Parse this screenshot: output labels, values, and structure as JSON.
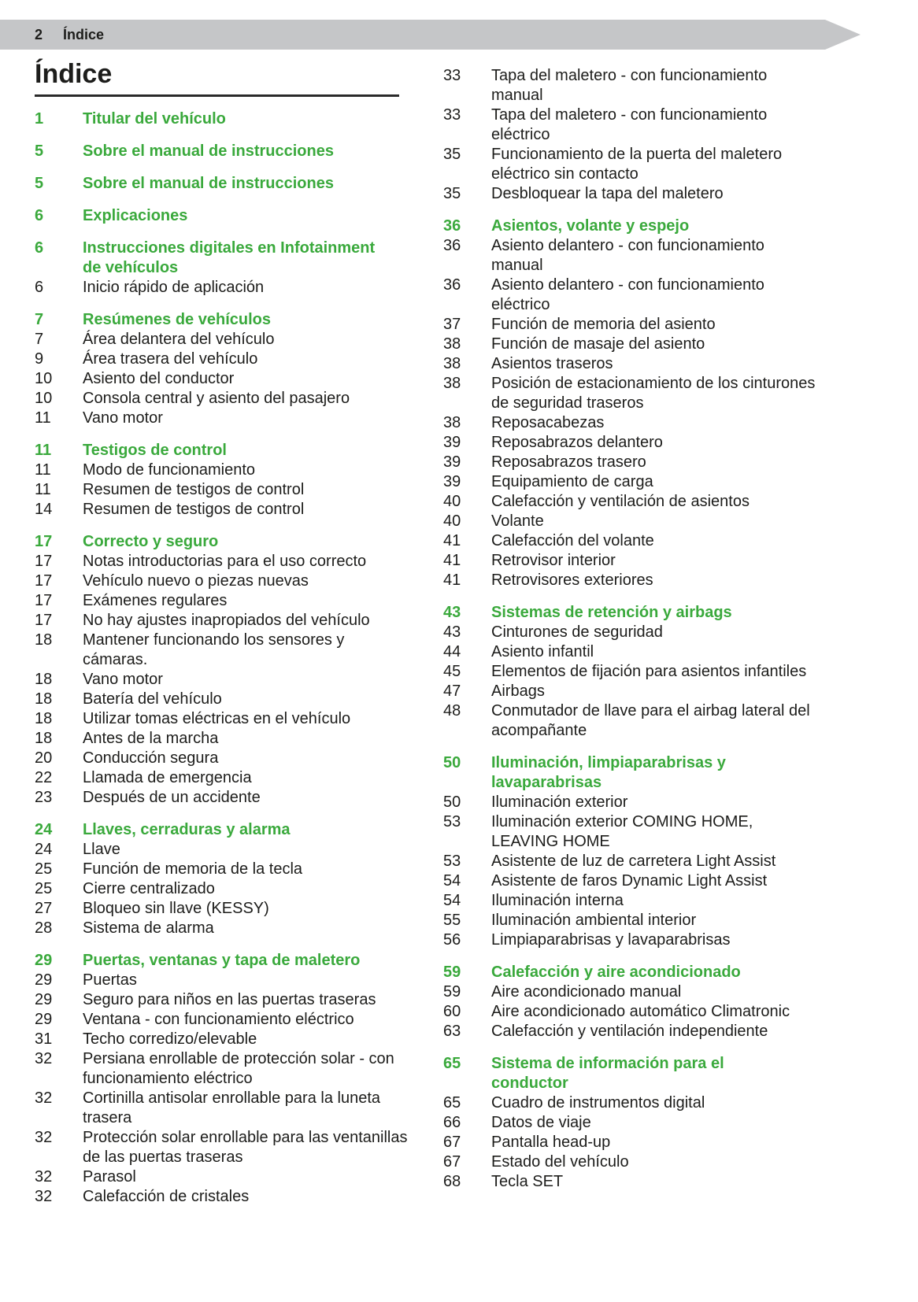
{
  "theme": {
    "accent_green": "#3aa93c",
    "band_gray": "#c5c6c8",
    "text_color": "#1d1d1b"
  },
  "header": {
    "page_number": "2",
    "title": "Índice"
  },
  "content": {
    "title": "Índice"
  },
  "columns": {
    "left": [
      {
        "rows": [
          {
            "kind": "heading",
            "page": "1",
            "text": "Titular del vehículo"
          }
        ]
      },
      {
        "rows": [
          {
            "kind": "heading",
            "page": "5",
            "text": "Sobre el manual de instrucciones"
          }
        ]
      },
      {
        "rows": [
          {
            "kind": "heading",
            "page": "5",
            "text": "Sobre el manual de instrucciones"
          }
        ]
      },
      {
        "rows": [
          {
            "kind": "heading",
            "page": "6",
            "text": "Explicaciones"
          }
        ]
      },
      {
        "rows": [
          {
            "kind": "heading",
            "page": "6",
            "text": "Instrucciones digitales en Infotainment\nde vehículos"
          },
          {
            "kind": "item",
            "page": "6",
            "text": "Inicio rápido de aplicación"
          }
        ]
      },
      {
        "rows": [
          {
            "kind": "heading",
            "page": "7",
            "text": "Resúmenes de vehículos"
          },
          {
            "kind": "item",
            "page": "7",
            "text": "Área delantera del vehículo"
          },
          {
            "kind": "item",
            "page": "9",
            "text": "Área trasera del vehículo"
          },
          {
            "kind": "item",
            "page": "10",
            "text": "Asiento del conductor"
          },
          {
            "kind": "item",
            "page": "10",
            "text": "Consola central y asiento del pasajero"
          },
          {
            "kind": "item",
            "page": "11",
            "text": "Vano motor"
          }
        ]
      },
      {
        "rows": [
          {
            "kind": "heading",
            "page": "11",
            "text": "Testigos de control"
          },
          {
            "kind": "item",
            "page": "11",
            "text": "Modo de funcionamiento"
          },
          {
            "kind": "item",
            "page": "11",
            "text": "Resumen de testigos de control"
          },
          {
            "kind": "item",
            "page": "14",
            "text": "Resumen de testigos de control"
          }
        ]
      },
      {
        "rows": [
          {
            "kind": "heading",
            "page": "17",
            "text": "Correcto y seguro"
          },
          {
            "kind": "item",
            "page": "17",
            "text": "Notas introductorias para el uso correcto"
          },
          {
            "kind": "item",
            "page": "17",
            "text": "Vehículo nuevo o piezas nuevas"
          },
          {
            "kind": "item",
            "page": "17",
            "text": "Exámenes regulares"
          },
          {
            "kind": "item",
            "page": "17",
            "text": "No hay ajustes inapropiados del vehículo"
          },
          {
            "kind": "item",
            "page": "18",
            "text": "Mantener funcionando los sensores y\ncámaras."
          },
          {
            "kind": "item",
            "page": "18",
            "text": "Vano motor"
          },
          {
            "kind": "item",
            "page": "18",
            "text": "Batería del vehículo"
          },
          {
            "kind": "item",
            "page": "18",
            "text": "Utilizar tomas eléctricas en el vehículo"
          },
          {
            "kind": "item",
            "page": "18",
            "text": "Antes de la marcha"
          },
          {
            "kind": "item",
            "page": "20",
            "text": "Conducción segura"
          },
          {
            "kind": "item",
            "page": "22",
            "text": "Llamada de emergencia"
          },
          {
            "kind": "item",
            "page": "23",
            "text": "Después de un accidente"
          }
        ]
      },
      {
        "rows": [
          {
            "kind": "heading",
            "page": "24",
            "text": "Llaves, cerraduras y alarma"
          },
          {
            "kind": "item",
            "page": "24",
            "text": "Llave"
          },
          {
            "kind": "item",
            "page": "25",
            "text": "Función de memoria de la tecla"
          },
          {
            "kind": "item",
            "page": "25",
            "text": "Cierre centralizado"
          },
          {
            "kind": "item",
            "page": "27",
            "text": "Bloqueo sin llave (KESSY)"
          },
          {
            "kind": "item",
            "page": "28",
            "text": "Sistema de alarma"
          }
        ]
      },
      {
        "rows": [
          {
            "kind": "heading",
            "page": "29",
            "text": "Puertas, ventanas y tapa de maletero"
          },
          {
            "kind": "item",
            "page": "29",
            "text": "Puertas"
          },
          {
            "kind": "item",
            "page": "29",
            "text": "Seguro para niños en las puertas traseras"
          },
          {
            "kind": "item",
            "page": "29",
            "text": "Ventana - con funcionamiento eléctrico"
          },
          {
            "kind": "item",
            "page": "31",
            "text": "Techo corredizo/elevable"
          },
          {
            "kind": "item",
            "page": "32",
            "text": "Persiana enrollable de protección solar - con\nfuncionamiento eléctrico"
          },
          {
            "kind": "item",
            "page": "32",
            "text": "Cortinilla antisolar enrollable para la luneta\ntrasera"
          },
          {
            "kind": "item",
            "page": "32",
            "text": "Protección solar enrollable para las ventanillas\nde las puertas traseras"
          },
          {
            "kind": "item",
            "page": "32",
            "text": "Parasol"
          },
          {
            "kind": "item",
            "page": "32",
            "text": "Calefacción de cristales"
          }
        ]
      }
    ],
    "right": [
      {
        "rows": [
          {
            "kind": "item",
            "page": "33",
            "text": "Tapa del maletero - con funcionamiento\nmanual"
          },
          {
            "kind": "item",
            "page": "33",
            "text": "Tapa del maletero - con funcionamiento\neléctrico"
          },
          {
            "kind": "item",
            "page": "35",
            "text": "Funcionamiento de la puerta del maletero\neléctrico sin contacto"
          },
          {
            "kind": "item",
            "page": "35",
            "text": "Desbloquear la tapa del maletero"
          }
        ]
      },
      {
        "rows": [
          {
            "kind": "heading",
            "page": "36",
            "text": "Asientos, volante y espejo"
          },
          {
            "kind": "item",
            "page": "36",
            "text": "Asiento delantero - con funcionamiento\nmanual"
          },
          {
            "kind": "item",
            "page": "36",
            "text": "Asiento delantero - con funcionamiento\neléctrico"
          },
          {
            "kind": "item",
            "page": "37",
            "text": "Función de memoria del asiento"
          },
          {
            "kind": "item",
            "page": "38",
            "text": "Función de masaje del asiento"
          },
          {
            "kind": "item",
            "page": "38",
            "text": "Asientos traseros"
          },
          {
            "kind": "item",
            "page": "38",
            "text": "Posición de estacionamiento de los cinturones\nde seguridad traseros"
          },
          {
            "kind": "item",
            "page": "38",
            "text": "Reposacabezas"
          },
          {
            "kind": "item",
            "page": "39",
            "text": "Reposabrazos delantero"
          },
          {
            "kind": "item",
            "page": "39",
            "text": "Reposabrazos trasero"
          },
          {
            "kind": "item",
            "page": "39",
            "text": "Equipamiento de carga"
          },
          {
            "kind": "item",
            "page": "40",
            "text": "Calefacción y ventilación de asientos"
          },
          {
            "kind": "item",
            "page": "40",
            "text": "Volante"
          },
          {
            "kind": "item",
            "page": "41",
            "text": "Calefacción del volante"
          },
          {
            "kind": "item",
            "page": "41",
            "text": "Retrovisor interior"
          },
          {
            "kind": "item",
            "page": "41",
            "text": "Retrovisores exteriores"
          }
        ]
      },
      {
        "rows": [
          {
            "kind": "heading",
            "page": "43",
            "text": "Sistemas de retención y airbags"
          },
          {
            "kind": "item",
            "page": "43",
            "text": "Cinturones de seguridad"
          },
          {
            "kind": "item",
            "page": "44",
            "text": "Asiento infantil"
          },
          {
            "kind": "item",
            "page": "45",
            "text": "Elementos de fijación para asientos infantiles"
          },
          {
            "kind": "item",
            "page": "47",
            "text": "Airbags"
          },
          {
            "kind": "item",
            "page": "48",
            "text": "Conmutador de llave para el airbag lateral del\nacompañante"
          }
        ]
      },
      {
        "rows": [
          {
            "kind": "heading",
            "page": "50",
            "text": "Iluminación, limpiaparabrisas y\nlavaparabrisas"
          },
          {
            "kind": "item",
            "page": "50",
            "text": "Iluminación exterior"
          },
          {
            "kind": "item",
            "page": "53",
            "text": "Iluminación exterior COMING HOME,\nLEAVING HOME"
          },
          {
            "kind": "item",
            "page": "53",
            "text": "Asistente de luz de carretera Light Assist"
          },
          {
            "kind": "item",
            "page": "54",
            "text": "Asistente de faros Dynamic Light Assist"
          },
          {
            "kind": "item",
            "page": "54",
            "text": "Iluminación interna"
          },
          {
            "kind": "item",
            "page": "55",
            "text": "Iluminación ambiental interior"
          },
          {
            "kind": "item",
            "page": "56",
            "text": "Limpiaparabrisas y lavaparabrisas"
          }
        ]
      },
      {
        "rows": [
          {
            "kind": "heading",
            "page": "59",
            "text": "Calefacción y aire acondicionado"
          },
          {
            "kind": "item",
            "page": "59",
            "text": "Aire acondicionado manual"
          },
          {
            "kind": "item",
            "page": "60",
            "text": "Aire acondicionado automático Climatronic"
          },
          {
            "kind": "item",
            "page": "63",
            "text": "Calefacción y ventilación independiente"
          }
        ]
      },
      {
        "rows": [
          {
            "kind": "heading",
            "page": "65",
            "text": "Sistema de información para el\nconductor"
          },
          {
            "kind": "item",
            "page": "65",
            "text": "Cuadro de instrumentos digital"
          },
          {
            "kind": "item",
            "page": "66",
            "text": "Datos de viaje"
          },
          {
            "kind": "item",
            "page": "67",
            "text": "Pantalla head-up"
          },
          {
            "kind": "item",
            "page": "67",
            "text": "Estado del vehículo"
          },
          {
            "kind": "item",
            "page": "68",
            "text": "Tecla SET"
          }
        ]
      }
    ]
  }
}
